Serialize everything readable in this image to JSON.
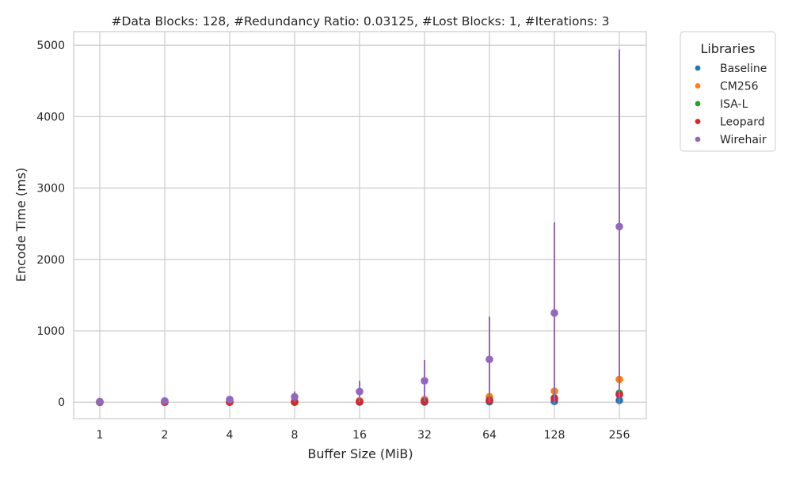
{
  "chart_data": {
    "type": "scatter",
    "title": "#Data Blocks: 128, #Redundancy Ratio: 0.03125, #Lost Blocks: 1, #Iterations: 3",
    "xlabel": "Buffer Size (MiB)",
    "ylabel": "Encode Time (ms)",
    "categories": [
      "1",
      "2",
      "4",
      "8",
      "16",
      "32",
      "64",
      "128",
      "256"
    ],
    "ylim": [
      -230,
      5190
    ],
    "yticks": [
      0,
      1000,
      2000,
      3000,
      4000,
      5000
    ],
    "grid": true,
    "legend": {
      "title": "Libraries",
      "placement": "upper-right-outside"
    },
    "series": [
      {
        "name": "Baseline",
        "color": "#1f77b4",
        "values": [
          0.1,
          0.2,
          0.4,
          0.8,
          1.6,
          3.2,
          6.5,
          13,
          26
        ]
      },
      {
        "name": "CM256",
        "color": "#ff7f0e",
        "values": [
          1.2,
          2.4,
          4.8,
          9.6,
          19,
          38,
          77,
          155,
          320
        ],
        "errors": [
          0.5,
          1,
          2,
          3,
          5,
          8,
          12,
          20,
          30
        ]
      },
      {
        "name": "ISA-L",
        "color": "#2ca02c",
        "values": [
          0.5,
          1,
          2,
          4,
          7,
          15,
          30,
          60,
          125
        ]
      },
      {
        "name": "Leopard",
        "color": "#d62728",
        "values": [
          0.4,
          0.8,
          1.6,
          3.2,
          6.4,
          13,
          26,
          52,
          105
        ]
      },
      {
        "name": "Wirehair",
        "color": "#9467bd",
        "values": [
          9,
          18,
          38,
          75,
          150,
          300,
          600,
          1250,
          2460
        ],
        "errors": [
          9,
          18,
          38,
          75,
          150,
          290,
          600,
          1270,
          2480
        ]
      }
    ]
  }
}
